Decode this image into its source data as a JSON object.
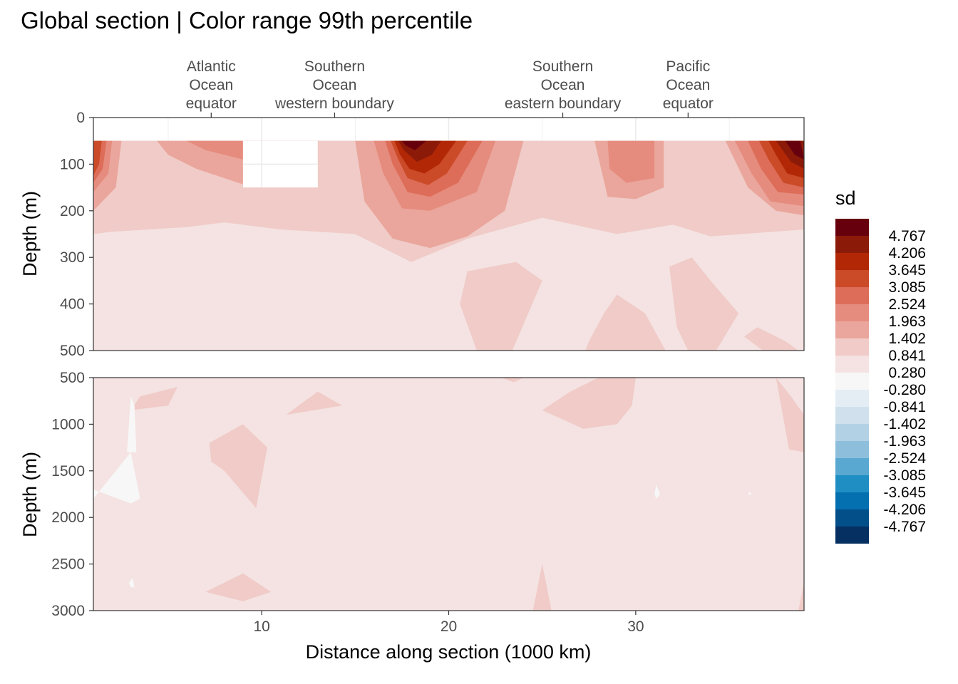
{
  "chart_data": {
    "type": "heatmap",
    "title": "Global section | Color range 99th percentile",
    "xlabel": "Distance along section (1000 km)",
    "ylabel": "Depth (m)",
    "xlim": [
      1,
      39
    ],
    "x_ticks": [
      "10",
      "20",
      "30"
    ],
    "x_tick_values": [
      10,
      20,
      30
    ],
    "section_labels": [
      {
        "x": 7.3,
        "lines": [
          "Atlantic",
          "Ocean",
          "equator"
        ]
      },
      {
        "x": 13.9,
        "lines": [
          "Southern",
          "Ocean",
          "western boundary"
        ]
      },
      {
        "x": 26.1,
        "lines": [
          "Southern",
          "Ocean",
          "eastern boundary"
        ]
      },
      {
        "x": 32.8,
        "lines": [
          "Pacific",
          "Ocean",
          "equator"
        ]
      }
    ],
    "panels": [
      {
        "name": "upper",
        "ylim": [
          0,
          500
        ],
        "y_ticks": [
          "0",
          "100",
          "200",
          "300",
          "400",
          "500"
        ],
        "y_tick_values": [
          0,
          100,
          200,
          300,
          400,
          500
        ],
        "data_top_depth": 50,
        "missing_region": {
          "x": [
            9,
            13
          ],
          "depth": [
            50,
            150
          ]
        },
        "hotspots": [
          {
            "x": 1,
            "depth": 50,
            "sd": 4.8
          },
          {
            "x": 17.5,
            "depth": 50,
            "sd": 5.0
          },
          {
            "x": 38.5,
            "depth": 50,
            "sd": 5.0
          },
          {
            "x": 7.5,
            "depth": 60,
            "sd": 2.2
          },
          {
            "x": 30,
            "depth": 100,
            "sd": 2.0
          },
          {
            "x": 13,
            "depth": 80,
            "sd": 1.5
          }
        ],
        "background_sd": 0.6
      },
      {
        "name": "lower",
        "ylim": [
          500,
          3000
        ],
        "y_ticks": [
          "500",
          "1000",
          "1500",
          "2000",
          "2500",
          "3000"
        ],
        "y_tick_values": [
          500,
          1000,
          1500,
          2000,
          2500,
          3000
        ],
        "background_sd": 0.6
      }
    ],
    "legend": {
      "title": "sd",
      "labels": [
        "4.767",
        "4.206",
        "3.645",
        "3.085",
        "2.524",
        "1.963",
        "1.402",
        "0.841",
        "0.280",
        "-0.280",
        "-0.841",
        "-1.402",
        "-1.963",
        "-2.524",
        "-3.085",
        "-3.645",
        "-4.206",
        "-4.767"
      ],
      "colors": [
        "#67000d",
        "#8c1a08",
        "#b22806",
        "#cb4a27",
        "#dd6d58",
        "#e58c7e",
        "#eaa69c",
        "#f0cbc7",
        "#f4e3e2",
        "#f7f7f7",
        "#e5edf4",
        "#d0e1ed",
        "#b2d1e5",
        "#8dbfdc",
        "#58a8d1",
        "#1f8ec3",
        "#0570b0",
        "#024f8a",
        "#053061"
      ],
      "placement": "right"
    },
    "grid": true,
    "palette": "diverging red-blue"
  }
}
